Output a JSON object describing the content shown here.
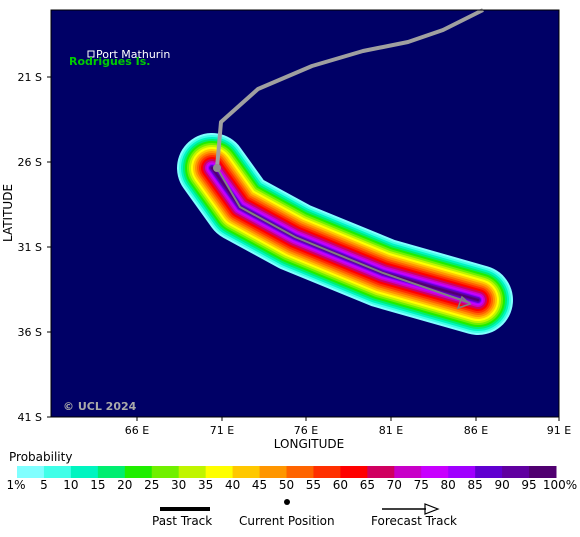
{
  "map": {
    "place_marker": "Port Mathurin",
    "island_label": "Rodrigues Is.",
    "copyright": "© UCL 2024",
    "x_axis_title": "LONGITUDE",
    "y_axis_title": "LATITUDE",
    "lon_ticks": [
      "66 E",
      "71 E",
      "76 E",
      "81 E",
      "86 E",
      "91 E"
    ],
    "lat_ticks": [
      "21 S",
      "26 S",
      "31 S",
      "36 S",
      "41 S"
    ],
    "colors": {
      "ocean": "#000066",
      "past_track": "#a0a0a0",
      "forecast_track": "#808080",
      "island_label": "#00cc00"
    }
  },
  "legend": {
    "title": "Probability",
    "ticks": [
      "1%",
      "5",
      "10",
      "15",
      "20",
      "25",
      "30",
      "35",
      "40",
      "45",
      "50",
      "55",
      "60",
      "65",
      "70",
      "75",
      "80",
      "85",
      "90",
      "95",
      "100%"
    ],
    "colors": [
      "#80ffff",
      "#40ffe8",
      "#00f5c0",
      "#00ee70",
      "#20ee00",
      "#70f000",
      "#c0f500",
      "#ffff00",
      "#ffc800",
      "#ff9600",
      "#ff6400",
      "#ff3000",
      "#ff0000",
      "#d00060",
      "#c800c8",
      "#c800ff",
      "#a000ff",
      "#6000d0",
      "#6000a0",
      "#500070"
    ]
  },
  "key": {
    "past_track": "Past Track",
    "current_position": "Current Position",
    "forecast_track": "Forecast Track"
  }
}
